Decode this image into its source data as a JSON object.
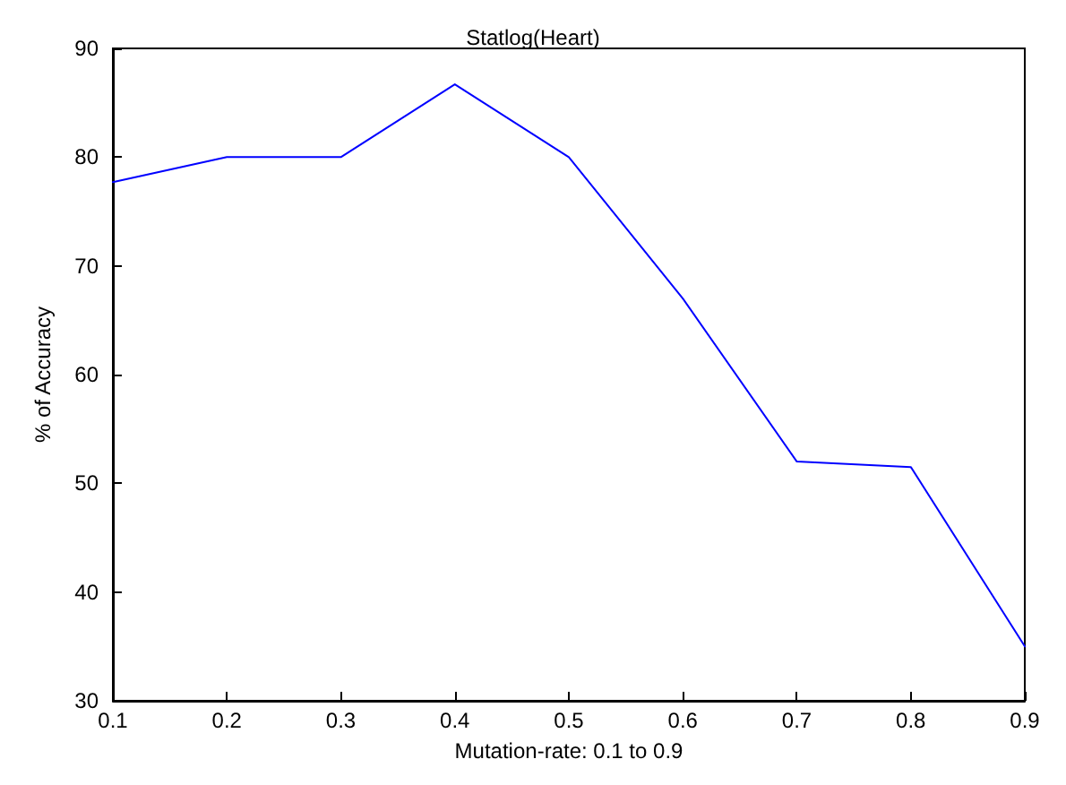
{
  "chart_data": {
    "type": "line",
    "title": "Statlog(Heart)",
    "xlabel": "Mutation-rate: 0.1 to 0.9",
    "ylabel": "% of Accuracy",
    "x": [
      0.1,
      0.2,
      0.3,
      0.4,
      0.5,
      0.6,
      0.7,
      0.8,
      0.9
    ],
    "series": [
      {
        "color": "#0000ff",
        "values": [
          77.7,
          80,
          80,
          86.7,
          80,
          67,
          52,
          51.5,
          35
        ]
      }
    ],
    "xlim": [
      0.1,
      0.9
    ],
    "xticks": [
      0.1,
      0.2,
      0.3,
      0.4,
      0.5,
      0.6,
      0.7,
      0.8,
      0.9
    ],
    "ylim": [
      30,
      90
    ],
    "yticks": [
      30,
      40,
      50,
      60,
      70,
      80,
      90
    ],
    "grid": false,
    "marker": "none",
    "line_style": "solid"
  }
}
